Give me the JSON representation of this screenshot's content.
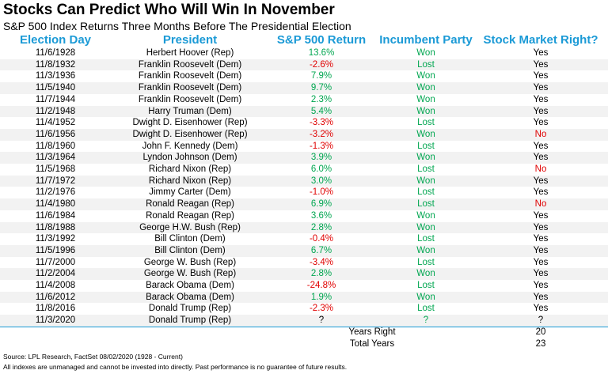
{
  "header": {
    "title": "Stocks Can Predict Who Will Win In November",
    "subtitle": "S&P 500 Index Returns Three Months Before The Presidential Election"
  },
  "table": {
    "columns": [
      "Election Day",
      "President",
      "S&P 500 Return",
      "Incumbent Party",
      "Stock Market Right?"
    ],
    "rows": [
      {
        "date": "11/6/1928",
        "president": "Herbert Hoover (Rep)",
        "return": "13.6%",
        "party": "Won",
        "right": "Yes",
        "return_color": "#00a650",
        "right_color": "#000000"
      },
      {
        "date": "11/8/1932",
        "president": "Franklin Roosevelt (Dem)",
        "return": "-2.6%",
        "party": "Lost",
        "right": "Yes",
        "return_color": "#e00000",
        "right_color": "#000000"
      },
      {
        "date": "11/3/1936",
        "president": "Franklin Roosevelt (Dem)",
        "return": "7.9%",
        "party": "Won",
        "right": "Yes",
        "return_color": "#00a650",
        "right_color": "#000000"
      },
      {
        "date": "11/5/1940",
        "president": "Franklin Roosevelt (Dem)",
        "return": "9.7%",
        "party": "Won",
        "right": "Yes",
        "return_color": "#00a650",
        "right_color": "#000000"
      },
      {
        "date": "11/7/1944",
        "president": "Franklin Roosevelt (Dem)",
        "return": "2.3%",
        "party": "Won",
        "right": "Yes",
        "return_color": "#00a650",
        "right_color": "#000000"
      },
      {
        "date": "11/2/1948",
        "president": "Harry Truman (Dem)",
        "return": "5.4%",
        "party": "Won",
        "right": "Yes",
        "return_color": "#00a650",
        "right_color": "#000000"
      },
      {
        "date": "11/4/1952",
        "president": "Dwight D. Eisenhower (Rep)",
        "return": "-3.3%",
        "party": "Lost",
        "right": "Yes",
        "return_color": "#e00000",
        "right_color": "#000000"
      },
      {
        "date": "11/6/1956",
        "president": "Dwight D. Eisenhower (Rep)",
        "return": "-3.2%",
        "party": "Won",
        "right": "No",
        "return_color": "#e00000",
        "right_color": "#e00000"
      },
      {
        "date": "11/8/1960",
        "president": "John F. Kennedy (Dem)",
        "return": "-1.3%",
        "party": "Lost",
        "right": "Yes",
        "return_color": "#e00000",
        "right_color": "#000000"
      },
      {
        "date": "11/3/1964",
        "president": "Lyndon Johnson (Dem)",
        "return": "3.9%",
        "party": "Won",
        "right": "Yes",
        "return_color": "#00a650",
        "right_color": "#000000"
      },
      {
        "date": "11/5/1968",
        "president": "Richard Nixon (Rep)",
        "return": "6.0%",
        "party": "Lost",
        "right": "No",
        "return_color": "#00a650",
        "right_color": "#e00000"
      },
      {
        "date": "11/7/1972",
        "president": "Richard Nixon (Rep)",
        "return": "3.0%",
        "party": "Won",
        "right": "Yes",
        "return_color": "#00a650",
        "right_color": "#000000"
      },
      {
        "date": "11/2/1976",
        "president": "Jimmy Carter (Dem)",
        "return": "-1.0%",
        "party": "Lost",
        "right": "Yes",
        "return_color": "#e00000",
        "right_color": "#000000"
      },
      {
        "date": "11/4/1980",
        "president": "Ronald Reagan (Rep)",
        "return": "6.9%",
        "party": "Lost",
        "right": "No",
        "return_color": "#00a650",
        "right_color": "#e00000"
      },
      {
        "date": "11/6/1984",
        "president": "Ronald Reagan (Rep)",
        "return": "3.6%",
        "party": "Won",
        "right": "Yes",
        "return_color": "#00a650",
        "right_color": "#000000"
      },
      {
        "date": "11/8/1988",
        "president": "George H.W. Bush (Rep)",
        "return": "2.8%",
        "party": "Won",
        "right": "Yes",
        "return_color": "#00a650",
        "right_color": "#000000"
      },
      {
        "date": "11/3/1992",
        "president": "Bill Clinton (Dem)",
        "return": "-0.4%",
        "party": "Lost",
        "right": "Yes",
        "return_color": "#e00000",
        "right_color": "#000000"
      },
      {
        "date": "11/5/1996",
        "president": "Bill Clinton (Dem)",
        "return": "6.7%",
        "party": "Won",
        "right": "Yes",
        "return_color": "#00a650",
        "right_color": "#000000"
      },
      {
        "date": "11/7/2000",
        "president": "George W. Bush (Rep)",
        "return": "-3.4%",
        "party": "Lost",
        "right": "Yes",
        "return_color": "#e00000",
        "right_color": "#000000"
      },
      {
        "date": "11/2/2004",
        "president": "George W. Bush (Rep)",
        "return": "2.8%",
        "party": "Won",
        "right": "Yes",
        "return_color": "#00a650",
        "right_color": "#000000"
      },
      {
        "date": "11/4/2008",
        "president": "Barack Obama (Dem)",
        "return": "-24.8%",
        "party": "Lost",
        "right": "Yes",
        "return_color": "#e00000",
        "right_color": "#000000"
      },
      {
        "date": "11/6/2012",
        "president": "Barack Obama (Dem)",
        "return": "1.9%",
        "party": "Won",
        "right": "Yes",
        "return_color": "#00a650",
        "right_color": "#000000"
      },
      {
        "date": "11/8/2016",
        "president": "Donald Trump (Rep)",
        "return": "-2.3%",
        "party": "Lost",
        "right": "Yes",
        "return_color": "#e00000",
        "right_color": "#000000"
      },
      {
        "date": "11/3/2020",
        "president": "Donald Trump (Rep)",
        "return": "?",
        "party": "?",
        "right": "?",
        "return_color": "#000000",
        "right_color": "#000000"
      }
    ],
    "party_color": "#00a650",
    "summary": [
      {
        "label": "Years Right",
        "value": 20
      },
      {
        "label": "Total Years",
        "value": 23
      }
    ]
  },
  "footer": {
    "source": "Source: LPL Research, FactSet 08/02/2020 (1928 - Current)",
    "disclaimer": "All indexes are unmanaged and cannot be invested into directly. Past performance is no guarantee of future results."
  }
}
